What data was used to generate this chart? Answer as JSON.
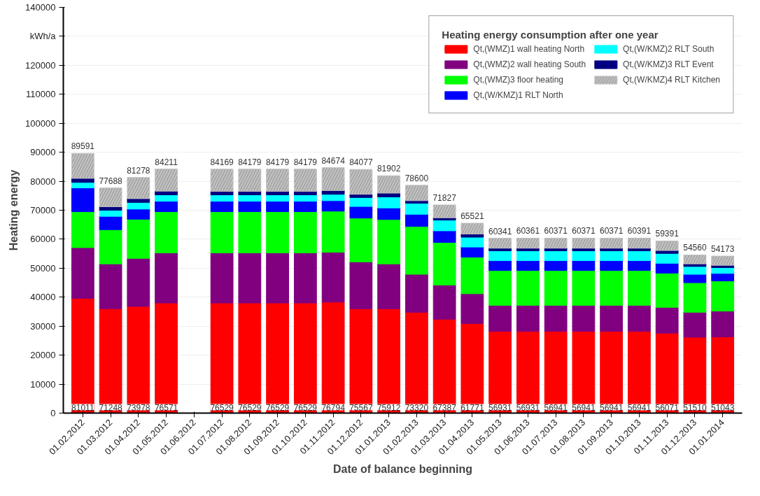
{
  "chart_data": {
    "type": "bar",
    "stacked": true,
    "xlabel": "Date of balance beginning",
    "ylabel": "Heating energy",
    "legend_title": "Heating energy consumption after one year",
    "legend": "top right",
    "grid": "y",
    "categories": [
      "01.02.2012",
      "01.03.2012",
      "01.04.2012",
      "01.05.2012",
      "01.06.2012",
      "01.07.2012",
      "01.08.2012",
      "01.09.2012",
      "01.10.2012",
      "01.11.2012",
      "01.12.2012",
      "01.01.2013",
      "01.02.2013",
      "01.03.2013",
      "01.04.2013",
      "01.05.2013",
      "01.06.2013",
      "01.07.2013",
      "01.08.2013",
      "01.09.2013",
      "01.10.2013",
      "01.11.2013",
      "01.12.2013",
      "01.01.2014"
    ],
    "ylim": [
      0,
      140000
    ],
    "yticks": [
      0,
      10000,
      20000,
      30000,
      40000,
      50000,
      60000,
      70000,
      80000,
      90000,
      100000,
      110000,
      120000,
      {
        "value": 130000,
        "label": "kWh/a"
      },
      140000
    ],
    "series": [
      {
        "name": "Qt,(WMZ)1 wall heating North",
        "color": "#ff0000",
        "values": [
          39600,
          36000,
          36800,
          38000,
          null,
          38000,
          38000,
          38000,
          38000,
          38300,
          36000,
          36000,
          34800,
          32400,
          30900,
          28200,
          28200,
          28200,
          28200,
          28200,
          28200,
          27600,
          26200,
          26300
        ]
      },
      {
        "name": "Qt,(WMZ)2 wall heating South",
        "color": "#800080",
        "values": [
          17500,
          15500,
          16600,
          17300,
          null,
          17300,
          17300,
          17300,
          17300,
          17200,
          16200,
          15500,
          13100,
          11800,
          10300,
          9000,
          9000,
          9000,
          9000,
          9000,
          9000,
          8900,
          8600,
          8900
        ]
      },
      {
        "name": "Qt,(WMZ)3 floor heating",
        "color": "#00ff00",
        "values": [
          12400,
          11800,
          13500,
          14200,
          null,
          14200,
          14200,
          14200,
          14200,
          14200,
          15100,
          15300,
          16500,
          14700,
          12600,
          12000,
          12000,
          12000,
          12000,
          12000,
          12000,
          11800,
          10200,
          10400
        ]
      },
      {
        "name": "Qt,(W/KMZ)1 RLT North",
        "color": "#0000ff",
        "values": [
          8200,
          4600,
          3500,
          3600,
          null,
          3600,
          3600,
          3600,
          3600,
          3600,
          4000,
          4000,
          4200,
          4000,
          3500,
          3400,
          3400,
          3400,
          3400,
          3400,
          3400,
          3400,
          2900,
          2600
        ]
      },
      {
        "name": "Qt,(W/KMZ)2 RLT South",
        "color": "#00ffff",
        "values": [
          1900,
          2100,
          2300,
          2200,
          null,
          2200,
          2200,
          2200,
          2200,
          2200,
          3100,
          3800,
          3800,
          3700,
          3400,
          3400,
          3400,
          3400,
          3400,
          3400,
          3400,
          3400,
          2700,
          2000
        ]
      },
      {
        "name": "Qt,(W/KMZ)3 RLT Event",
        "color": "#000080",
        "values": [
          1400,
          1200,
          1300,
          1300,
          null,
          1200,
          1200,
          1200,
          1200,
          1300,
          1100,
          1300,
          900,
          800,
          1100,
          900,
          900,
          900,
          900,
          900,
          900,
          1000,
          900,
          800
        ]
      },
      {
        "name": "Qt,(W/KMZ)4 RLT Kitchen",
        "color": "#c0c0c0",
        "values": [
          8591,
          6488,
          7278,
          7611,
          null,
          7669,
          7679,
          7679,
          7679,
          7874,
          8577,
          6002,
          5300,
          4427,
          3721,
          3441,
          3461,
          3471,
          3471,
          3471,
          3491,
          3291,
          3060,
          3173
        ]
      }
    ],
    "totals": [
      "89591",
      "77688",
      "81278",
      "84211",
      null,
      "84169",
      "84179",
      "84179",
      "84179",
      "84674",
      "84077",
      "81902",
      "78600",
      "71827",
      "65521",
      "60341",
      "60361",
      "60371",
      "60371",
      "60371",
      "60391",
      "59391",
      "54560",
      "54173"
    ],
    "annotations": [
      {
        "text": "81011",
        "x": "01.02.2012",
        "y": 0
      },
      {
        "text": "71248",
        "x": "01.03.2012",
        "y": 0
      },
      {
        "text": "73978",
        "x": "01.04.2012",
        "y": 0
      },
      {
        "text": "76571",
        "x": "01.05.2012",
        "y": 0
      },
      {
        "text": "76529",
        "x": "01.07.2012",
        "y": 0
      },
      {
        "text": "76529",
        "x": "01.08.2012",
        "y": 0
      },
      {
        "text": "76529",
        "x": "01.09.2012",
        "y": 0
      },
      {
        "text": "76529",
        "x": "01.10.2012",
        "y": 0
      },
      {
        "text": "76794",
        "x": "01.11.2012",
        "y": 0
      },
      {
        "text": "75567",
        "x": "01.12.2012",
        "y": 0
      },
      {
        "text": "75912",
        "x": "01.01.2013",
        "y": 0
      },
      {
        "text": "73320",
        "x": "01.02.2013",
        "y": 0
      },
      {
        "text": "67387",
        "x": "01.03.2013",
        "y": 0
      },
      {
        "text": "61771",
        "x": "01.04.2013",
        "y": 0
      },
      {
        "text": "56931",
        "x": "01.05.2013",
        "y": 0
      },
      {
        "text": "56931",
        "x": "01.06.2013",
        "y": 0
      },
      {
        "text": "56941",
        "x": "01.07.2013",
        "y": 0
      },
      {
        "text": "56941",
        "x": "01.08.2013",
        "y": 0
      },
      {
        "text": "56941",
        "x": "01.09.2013",
        "y": 0
      },
      {
        "text": "56941",
        "x": "01.10.2013",
        "y": 0
      },
      {
        "text": "56071",
        "x": "01.11.2013",
        "y": 0
      },
      {
        "text": "51510",
        "x": "01.12.2013",
        "y": 0
      },
      {
        "text": "51043",
        "x": "01.01.2014",
        "y": 0
      }
    ]
  }
}
